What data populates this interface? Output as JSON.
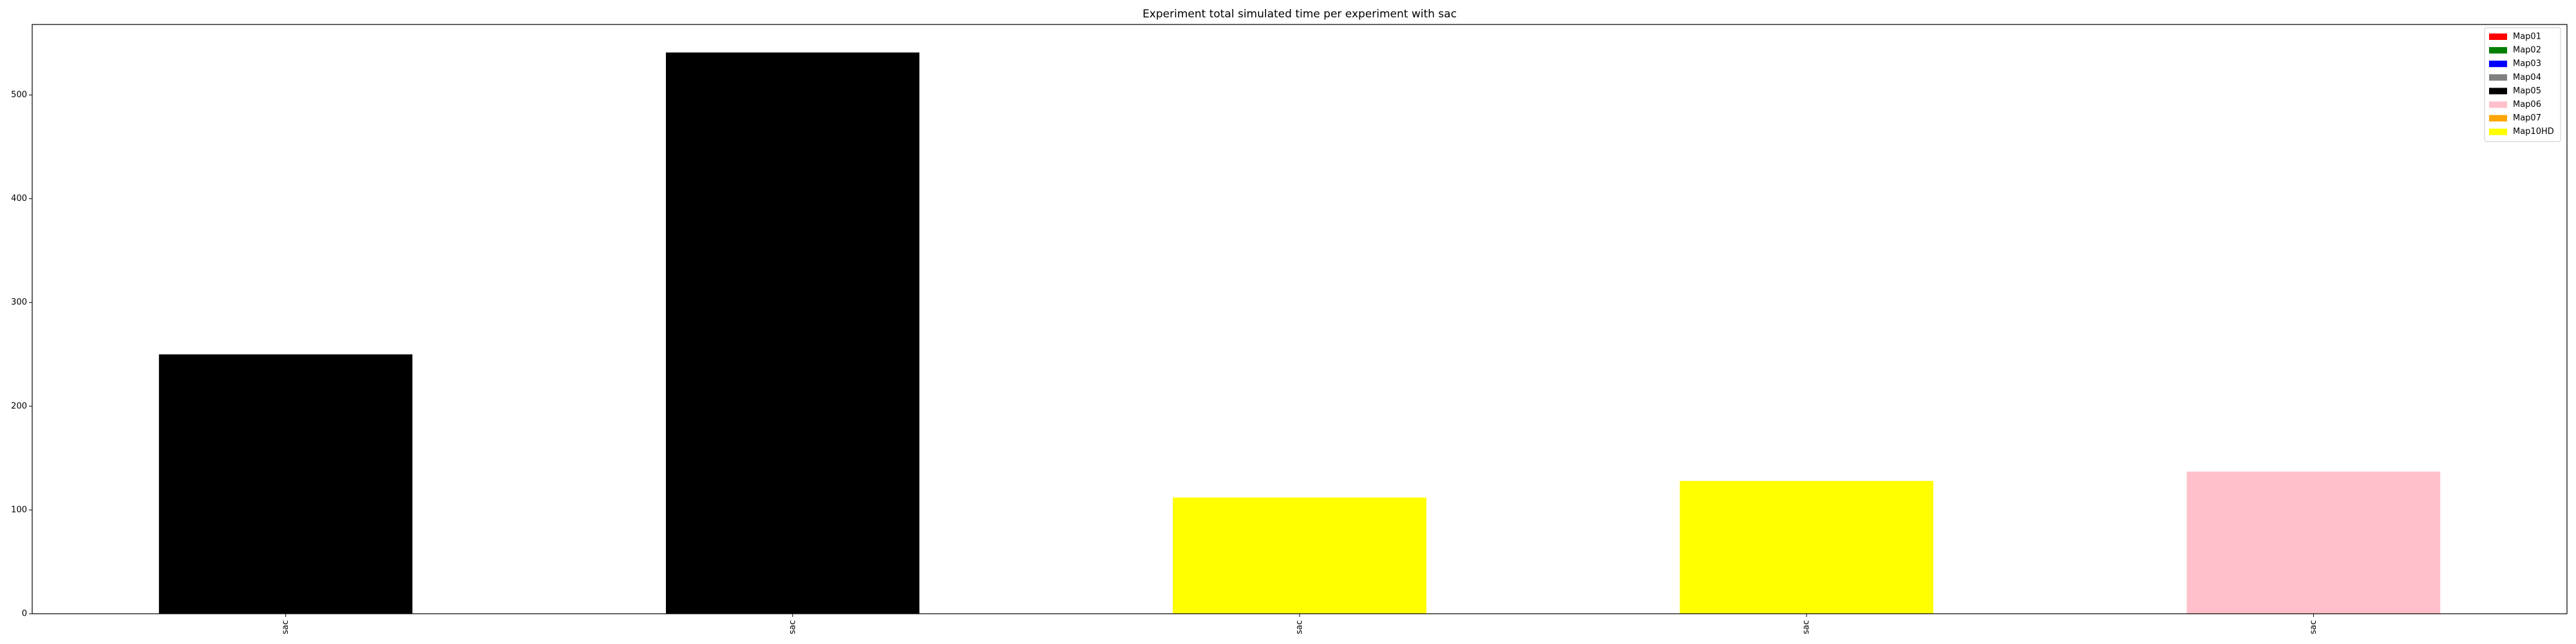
{
  "chart_data": {
    "type": "bar",
    "title": "Experiment total simulated time per experiment with sac",
    "xlabel": "",
    "ylabel": "",
    "categories": [
      "sac",
      "sac",
      "sac",
      "sac",
      "sac"
    ],
    "values": [
      250,
      541,
      112,
      128,
      137
    ],
    "bar_map": [
      "Map05",
      "Map05",
      "Map10HD",
      "Map10HD",
      "Map06"
    ],
    "ylim": [
      0,
      568
    ],
    "yticks": [
      0,
      100,
      200,
      300,
      400,
      500
    ],
    "grid": false,
    "legend_position": "top-right",
    "legend": [
      {
        "name": "Map01",
        "color": "#ff0000"
      },
      {
        "name": "Map02",
        "color": "#008000"
      },
      {
        "name": "Map03",
        "color": "#0000ff"
      },
      {
        "name": "Map04",
        "color": "#808080"
      },
      {
        "name": "Map05",
        "color": "#000000"
      },
      {
        "name": "Map06",
        "color": "#ffc0cb"
      },
      {
        "name": "Map07",
        "color": "#ffa500"
      },
      {
        "name": "Map10HD",
        "color": "#ffff00"
      }
    ]
  }
}
